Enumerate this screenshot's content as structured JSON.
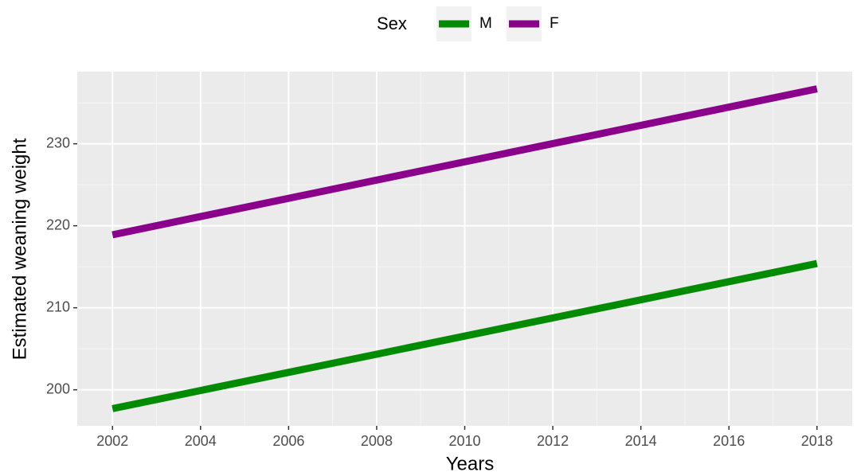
{
  "chart_data": {
    "type": "line",
    "x_label": "Years",
    "y_label": "Estimated weaning weight",
    "legend_title": "Sex",
    "legend_position": "top",
    "x": [
      2002,
      2018
    ],
    "series": [
      {
        "name": "M",
        "color": "#008b00",
        "values": [
          197.7,
          215.4
        ]
      },
      {
        "name": "F",
        "color": "#8b008b",
        "values": [
          218.9,
          236.7
        ]
      }
    ],
    "xlim": [
      2001.2,
      2018.8
    ],
    "xticks": [
      2002,
      2004,
      2006,
      2008,
      2010,
      2012,
      2014,
      2016,
      2018
    ],
    "ylim": [
      195.6,
      238.8
    ],
    "yticks": [
      200,
      210,
      220,
      230
    ],
    "grid": true
  }
}
